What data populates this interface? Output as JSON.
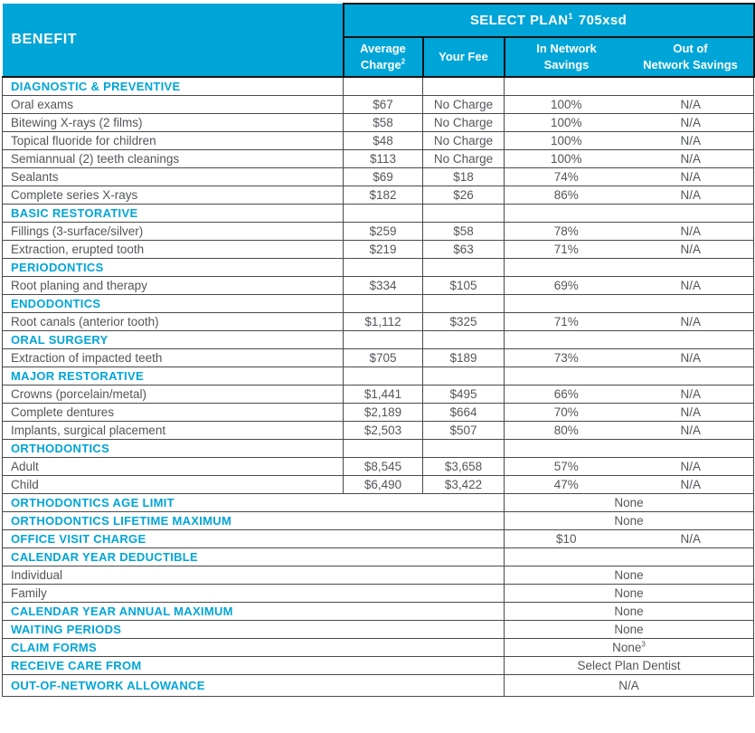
{
  "colors": {
    "accent_cyan": "#00a5d8",
    "body_text": "#53565a",
    "header_border": "#121212",
    "grid_border": "#48494b",
    "header_text": "#ffffff"
  },
  "header": {
    "benefit_label": "BENEFIT",
    "plan": {
      "title": "SELECT PLAN",
      "sup": "1",
      "code": "705xsd"
    },
    "columns": [
      {
        "line1": "Average",
        "line2": "Charge",
        "sup": "2"
      },
      {
        "line1": "Your Fee"
      },
      {
        "line1": "In Network",
        "line2": "Savings"
      },
      {
        "line1": "Out of",
        "line2": "Network Savings"
      }
    ]
  },
  "rows": [
    {
      "type": "section",
      "label": "DIAGNOSTIC & PREVENTIVE"
    },
    {
      "type": "item",
      "label": "Oral exams",
      "avg": "$67",
      "fee": "No Charge",
      "inNet": "100%",
      "outNet": "N/A"
    },
    {
      "type": "item",
      "label": "Bitewing X-rays (2 films)",
      "avg": "$58",
      "fee": "No Charge",
      "inNet": "100%",
      "outNet": "N/A"
    },
    {
      "type": "item",
      "label": "Topical fluoride for children",
      "avg": "$48",
      "fee": "No Charge",
      "inNet": "100%",
      "outNet": "N/A"
    },
    {
      "type": "item",
      "label": "Semiannual (2) teeth cleanings",
      "avg": "$113",
      "fee": "No Charge",
      "inNet": "100%",
      "outNet": "N/A"
    },
    {
      "type": "item",
      "label": "Sealants",
      "avg": "$69",
      "fee": "$18",
      "inNet": "74%",
      "outNet": "N/A"
    },
    {
      "type": "item",
      "label": "Complete series X-rays",
      "avg": "$182",
      "fee": "$26",
      "inNet": "86%",
      "outNet": "N/A"
    },
    {
      "type": "section",
      "label": "BASIC RESTORATIVE"
    },
    {
      "type": "item",
      "label": "Fillings (3-surface/silver)",
      "avg": "$259",
      "fee": "$58",
      "inNet": "78%",
      "outNet": "N/A"
    },
    {
      "type": "item",
      "label": "Extraction, erupted tooth",
      "avg": "$219",
      "fee": "$63",
      "inNet": "71%",
      "outNet": "N/A"
    },
    {
      "type": "section",
      "label": "PERIODONTICS"
    },
    {
      "type": "item",
      "label": "Root planing and therapy",
      "avg": "$334",
      "fee": "$105",
      "inNet": "69%",
      "outNet": "N/A"
    },
    {
      "type": "section",
      "label": "ENDODONTICS"
    },
    {
      "type": "item",
      "label": "Root canals (anterior tooth)",
      "avg": "$1,112",
      "fee": "$325",
      "inNet": "71%",
      "outNet": "N/A"
    },
    {
      "type": "section",
      "label": "ORAL SURGERY"
    },
    {
      "type": "item",
      "label": "Extraction of impacted teeth",
      "avg": "$705",
      "fee": "$189",
      "inNet": "73%",
      "outNet": "N/A"
    },
    {
      "type": "section",
      "label": "MAJOR RESTORATIVE"
    },
    {
      "type": "item",
      "label": "Crowns (porcelain/metal)",
      "avg": "$1,441",
      "fee": "$495",
      "inNet": "66%",
      "outNet": "N/A"
    },
    {
      "type": "item",
      "label": "Complete dentures",
      "avg": "$2,189",
      "fee": "$664",
      "inNet": "70%",
      "outNet": "N/A"
    },
    {
      "type": "item",
      "label": "Implants, surgical placement",
      "avg": "$2,503",
      "fee": "$507",
      "inNet": "80%",
      "outNet": "N/A"
    },
    {
      "type": "section",
      "label": "ORTHODONTICS"
    },
    {
      "type": "item",
      "label": "Adult",
      "avg": "$8,545",
      "fee": "$3,658",
      "inNet": "57%",
      "outNet": "N/A"
    },
    {
      "type": "item",
      "label": "Child",
      "avg": "$6,490",
      "fee": "$3,422",
      "inNet": "47%",
      "outNet": "N/A"
    },
    {
      "type": "wide",
      "style": "section",
      "label": "ORTHODONTICS AGE LIMIT",
      "value": "None"
    },
    {
      "type": "wide",
      "style": "section",
      "label": "ORTHODONTICS LIFETIME MAXIMUM",
      "value": "None"
    },
    {
      "type": "wide",
      "style": "section",
      "label": "OFFICE VISIT CHARGE",
      "inNet": "$10",
      "outNet": "N/A"
    },
    {
      "type": "wide",
      "style": "section",
      "label": "CALENDAR YEAR DEDUCTIBLE",
      "value": ""
    },
    {
      "type": "wide",
      "style": "item",
      "label": "Individual",
      "value": "None"
    },
    {
      "type": "wide",
      "style": "item",
      "label": "Family",
      "value": "None"
    },
    {
      "type": "wide",
      "style": "section",
      "label": "CALENDAR YEAR ANNUAL MAXIMUM",
      "value": "None"
    },
    {
      "type": "wide",
      "style": "section",
      "label": "WAITING PERIODS",
      "value": "None"
    },
    {
      "type": "wide",
      "style": "section",
      "label": "CLAIM FORMS",
      "value": "None",
      "valueSup": "3"
    },
    {
      "type": "wide",
      "style": "section",
      "label": "RECEIVE CARE FROM",
      "value": "Select Plan Dentist"
    },
    {
      "type": "wide",
      "style": "section",
      "label": "OUT-OF-NETWORK ALLOWANCE",
      "value": "N/A",
      "tall": true
    }
  ]
}
